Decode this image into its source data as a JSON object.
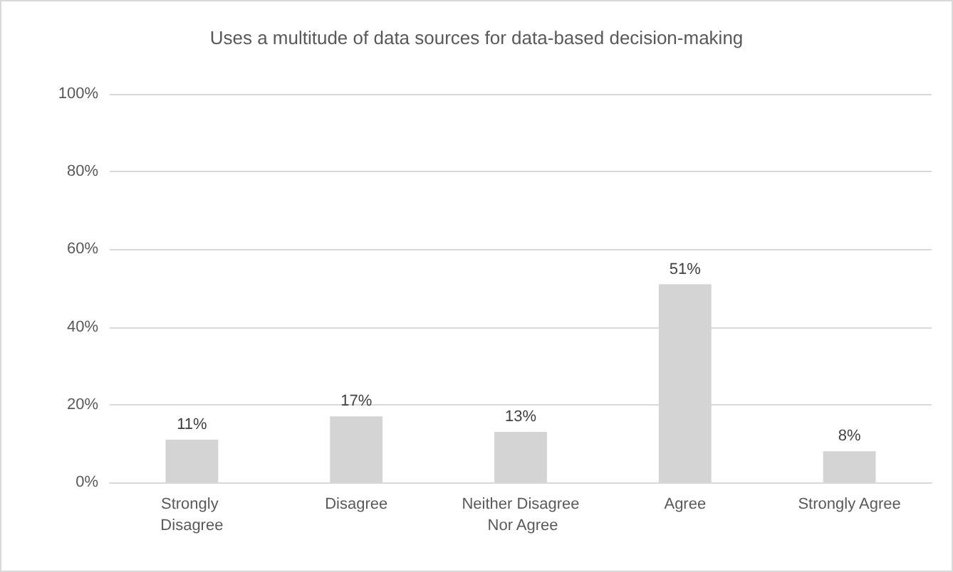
{
  "chart_data": {
    "type": "bar",
    "title": "Uses a multitude of data sources for data-based decision-making",
    "categories": [
      "Strongly Disagree",
      "Disagree",
      "Neither Disagree Nor Agree",
      "Agree",
      "Strongly Agree"
    ],
    "values": [
      11,
      17,
      13,
      51,
      8
    ],
    "color": "#d4d4d4",
    "ylim": [
      0,
      100
    ],
    "yticks": [
      {
        "value": 0,
        "label": "0%"
      },
      {
        "value": 20,
        "label": "20%"
      },
      {
        "value": 40,
        "label": "40%"
      },
      {
        "value": 60,
        "label": "60%"
      },
      {
        "value": 80,
        "label": "80%"
      },
      {
        "value": 100,
        "label": "100%"
      }
    ],
    "value_labels": [
      "11%",
      "17%",
      "13%",
      "51%",
      "8%"
    ],
    "grid": "y"
  }
}
